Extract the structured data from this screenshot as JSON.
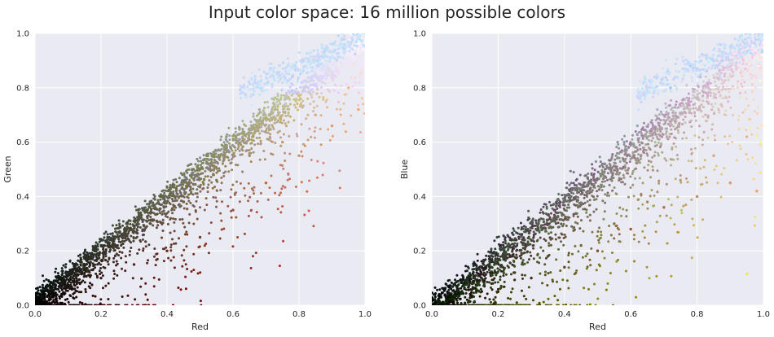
{
  "figure": {
    "title": "Input color space: 16 million possible colors"
  },
  "chart_data": [
    {
      "type": "scatter",
      "title": "",
      "xlabel": "Red",
      "ylabel": "Green",
      "xlim": [
        0,
        1
      ],
      "ylim": [
        0,
        1
      ],
      "xticks": [
        "0.0",
        "0.2",
        "0.4",
        "0.6",
        "0.8",
        "1.0"
      ],
      "yticks": [
        "0.0",
        "0.2",
        "0.4",
        "0.6",
        "0.8",
        "1.0"
      ],
      "grid": true,
      "background": "#eaeaf2",
      "grid_color": "#ffffff",
      "point_color": "rgb of each sampled pixel",
      "sample_points": [
        [
          0.02,
          0.03,
          "#0e120c"
        ],
        [
          0.05,
          0.06,
          "#151a12"
        ],
        [
          0.08,
          0.08,
          "#1c1f16"
        ],
        [
          0.1,
          0.12,
          "#222a1d"
        ],
        [
          0.12,
          0.06,
          "#2a1710"
        ],
        [
          0.15,
          0.14,
          "#2d3222"
        ],
        [
          0.18,
          0.2,
          "#323b2a"
        ],
        [
          0.2,
          0.1,
          "#3b1d14"
        ],
        [
          0.22,
          0.25,
          "#363f2c"
        ],
        [
          0.25,
          0.22,
          "#3e4026"
        ],
        [
          0.28,
          0.3,
          "#434a31"
        ],
        [
          0.3,
          0.15,
          "#4c2418"
        ],
        [
          0.32,
          0.34,
          "#4d5436"
        ],
        [
          0.35,
          0.3,
          "#595432"
        ],
        [
          0.38,
          0.4,
          "#5a6140"
        ],
        [
          0.4,
          0.2,
          "#66301f"
        ],
        [
          0.42,
          0.44,
          "#666c46"
        ],
        [
          0.45,
          0.38,
          "#6e6236"
        ],
        [
          0.48,
          0.5,
          "#727a50"
        ],
        [
          0.5,
          0.25,
          "#7c3b25"
        ],
        [
          0.52,
          0.55,
          "#7f8758"
        ],
        [
          0.55,
          0.46,
          "#89753f"
        ],
        [
          0.58,
          0.62,
          "#8c9a78"
        ],
        [
          0.6,
          0.35,
          "#985234"
        ],
        [
          0.62,
          0.65,
          "#9aa28a"
        ],
        [
          0.65,
          0.55,
          "#a78d58"
        ],
        [
          0.68,
          0.72,
          "#aab4a6"
        ],
        [
          0.7,
          0.45,
          "#b26a48"
        ],
        [
          0.72,
          0.76,
          "#b3bec0"
        ],
        [
          0.75,
          0.6,
          "#c19a6c"
        ],
        [
          0.78,
          0.84,
          "#bfd0e6"
        ],
        [
          0.8,
          0.55,
          "#cc8c5c"
        ],
        [
          0.82,
          0.88,
          "#c6d8f2"
        ],
        [
          0.85,
          0.7,
          "#d8a87c"
        ],
        [
          0.88,
          0.92,
          "#cfe0fa"
        ],
        [
          0.9,
          0.66,
          "#e09a64"
        ],
        [
          0.92,
          0.95,
          "#d8e6fb"
        ],
        [
          0.95,
          0.8,
          "#efb586"
        ],
        [
          0.97,
          0.98,
          "#e2ecfd"
        ],
        [
          0.98,
          0.72,
          "#f3a56a"
        ]
      ]
    },
    {
      "type": "scatter",
      "title": "",
      "xlabel": "Red",
      "ylabel": "Blue",
      "xlim": [
        0,
        1
      ],
      "ylim": [
        0,
        1
      ],
      "xticks": [
        "0.0",
        "0.2",
        "0.4",
        "0.6",
        "0.8",
        "1.0"
      ],
      "yticks": [
        "0.0",
        "0.2",
        "0.4",
        "0.6",
        "0.8",
        "1.0"
      ],
      "grid": true,
      "background": "#eaeaf2",
      "grid_color": "#ffffff",
      "point_color": "rgb of each sampled pixel",
      "sample_points": [
        [
          0.02,
          0.02,
          "#0d110e"
        ],
        [
          0.05,
          0.04,
          "#141a14"
        ],
        [
          0.08,
          0.06,
          "#1b2019"
        ],
        [
          0.1,
          0.09,
          "#1f2a26"
        ],
        [
          0.12,
          0.03,
          "#2a1a0a"
        ],
        [
          0.15,
          0.1,
          "#2b2f2a"
        ],
        [
          0.18,
          0.14,
          "#30392f"
        ],
        [
          0.2,
          0.05,
          "#3a2511"
        ],
        [
          0.22,
          0.18,
          "#373f38"
        ],
        [
          0.25,
          0.12,
          "#3f3a1e"
        ],
        [
          0.28,
          0.24,
          "#444b44"
        ],
        [
          0.3,
          0.1,
          "#4d3018"
        ],
        [
          0.32,
          0.28,
          "#4e554e"
        ],
        [
          0.35,
          0.18,
          "#58502a"
        ],
        [
          0.38,
          0.34,
          "#5b6260"
        ],
        [
          0.4,
          0.14,
          "#664224"
        ],
        [
          0.42,
          0.4,
          "#666e6c"
        ],
        [
          0.45,
          0.22,
          "#6e6430"
        ],
        [
          0.48,
          0.46,
          "#727a7c"
        ],
        [
          0.5,
          0.2,
          "#7c4c2c"
        ],
        [
          0.52,
          0.52,
          "#80888c"
        ],
        [
          0.55,
          0.3,
          "#8a7240"
        ],
        [
          0.58,
          0.6,
          "#8e9aa8"
        ],
        [
          0.6,
          0.28,
          "#985a38"
        ],
        [
          0.62,
          0.66,
          "#9aa6b4"
        ],
        [
          0.65,
          0.38,
          "#a88a58"
        ],
        [
          0.68,
          0.72,
          "#aab6c6"
        ],
        [
          0.7,
          0.36,
          "#b46c48"
        ],
        [
          0.72,
          0.8,
          "#b4c4d8"
        ],
        [
          0.75,
          0.46,
          "#c29a6e"
        ],
        [
          0.78,
          0.88,
          "#bcd0ee"
        ],
        [
          0.8,
          0.4,
          "#cc8656"
        ],
        [
          0.82,
          0.92,
          "#c6daf6"
        ],
        [
          0.85,
          0.55,
          "#d8a47e"
        ],
        [
          0.88,
          0.96,
          "#cfe0fb"
        ],
        [
          0.9,
          0.45,
          "#e69660"
        ],
        [
          0.92,
          0.98,
          "#d8e6fc"
        ],
        [
          0.95,
          0.62,
          "#efb080"
        ],
        [
          0.97,
          0.99,
          "#e2ecfd"
        ],
        [
          0.98,
          0.42,
          "#f3a060"
        ]
      ]
    }
  ]
}
